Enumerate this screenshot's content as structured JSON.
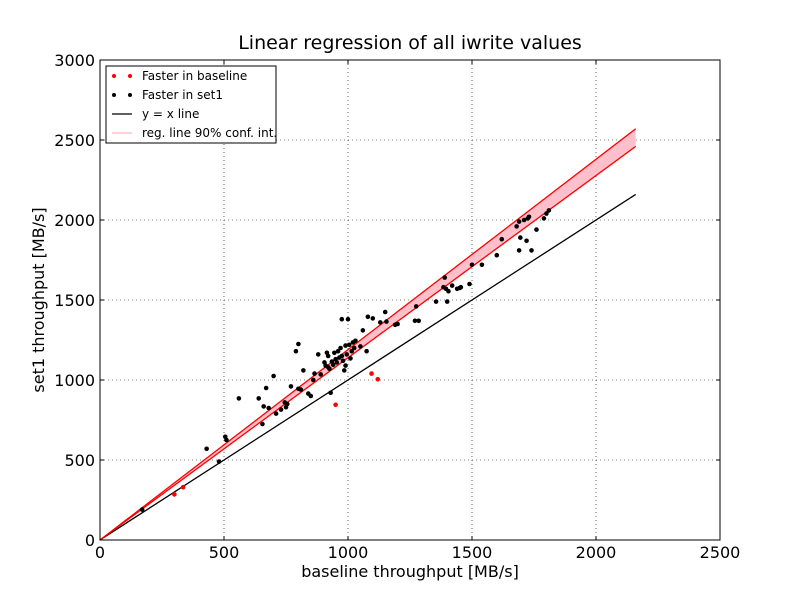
{
  "chart_data": {
    "type": "scatter",
    "title": "Linear regression of all iwrite values",
    "xlabel": "baseline throughput [MB/s]",
    "ylabel": "set1 throughput [MB/s]",
    "xlim": [
      0,
      2500
    ],
    "ylim": [
      0,
      3000
    ],
    "xticks": [
      0,
      500,
      1000,
      1500,
      2000,
      2500
    ],
    "yticks": [
      0,
      500,
      1000,
      1500,
      2000,
      2500,
      3000
    ],
    "grid": true,
    "legend_position": "top-left",
    "colors": {
      "baseline_points": "#ff0000",
      "set1_points": "#000000",
      "identity_line": "#000000",
      "regression": "#ff0000",
      "confidence_fill": "#ffc0cb"
    },
    "series": [
      {
        "name": "Faster in baseline",
        "kind": "points",
        "points": [
          [
            300,
            285
          ],
          [
            335,
            330
          ],
          [
            950,
            845
          ],
          [
            1095,
            1040
          ],
          [
            1120,
            1005
          ]
        ]
      },
      {
        "name": "Faster in set1",
        "kind": "points",
        "points": [
          [
            170,
            190
          ],
          [
            430,
            570
          ],
          [
            480,
            490
          ],
          [
            505,
            645
          ],
          [
            510,
            625
          ],
          [
            560,
            885
          ],
          [
            640,
            885
          ],
          [
            655,
            725
          ],
          [
            660,
            835
          ],
          [
            670,
            950
          ],
          [
            680,
            825
          ],
          [
            700,
            1025
          ],
          [
            710,
            790
          ],
          [
            730,
            815
          ],
          [
            745,
            860
          ],
          [
            750,
            830
          ],
          [
            755,
            850
          ],
          [
            770,
            960
          ],
          [
            790,
            1180
          ],
          [
            800,
            1225
          ],
          [
            800,
            945
          ],
          [
            810,
            940
          ],
          [
            820,
            1060
          ],
          [
            840,
            915
          ],
          [
            850,
            900
          ],
          [
            860,
            1000
          ],
          [
            865,
            1040
          ],
          [
            880,
            1160
          ],
          [
            890,
            1035
          ],
          [
            905,
            1110
          ],
          [
            910,
            1090
          ],
          [
            915,
            1170
          ],
          [
            920,
            1150
          ],
          [
            920,
            1080
          ],
          [
            925,
            1070
          ],
          [
            930,
            920
          ],
          [
            935,
            1115
          ],
          [
            940,
            1095
          ],
          [
            945,
            1170
          ],
          [
            950,
            1130
          ],
          [
            955,
            1110
          ],
          [
            960,
            1180
          ],
          [
            965,
            1140
          ],
          [
            970,
            1200
          ],
          [
            975,
            1150
          ],
          [
            975,
            1380
          ],
          [
            980,
            1120
          ],
          [
            985,
            1060
          ],
          [
            990,
            1090
          ],
          [
            990,
            1215
          ],
          [
            995,
            1160
          ],
          [
            1000,
            1380
          ],
          [
            1005,
            1220
          ],
          [
            1010,
            1135
          ],
          [
            1015,
            1180
          ],
          [
            1020,
            1235
          ],
          [
            1025,
            1200
          ],
          [
            1030,
            1245
          ],
          [
            1050,
            1210
          ],
          [
            1060,
            1310
          ],
          [
            1075,
            1180
          ],
          [
            1080,
            1395
          ],
          [
            1100,
            1385
          ],
          [
            1130,
            1360
          ],
          [
            1150,
            1425
          ],
          [
            1155,
            1365
          ],
          [
            1190,
            1345
          ],
          [
            1200,
            1350
          ],
          [
            1270,
            1370
          ],
          [
            1275,
            1460
          ],
          [
            1285,
            1370
          ],
          [
            1355,
            1490
          ],
          [
            1385,
            1580
          ],
          [
            1390,
            1640
          ],
          [
            1395,
            1570
          ],
          [
            1400,
            1490
          ],
          [
            1405,
            1555
          ],
          [
            1420,
            1590
          ],
          [
            1440,
            1570
          ],
          [
            1450,
            1575
          ],
          [
            1455,
            1580
          ],
          [
            1490,
            1600
          ],
          [
            1500,
            1720
          ],
          [
            1540,
            1720
          ],
          [
            1600,
            1780
          ],
          [
            1620,
            1880
          ],
          [
            1680,
            1960
          ],
          [
            1690,
            1810
          ],
          [
            1690,
            1990
          ],
          [
            1695,
            1890
          ],
          [
            1710,
            2000
          ],
          [
            1720,
            1870
          ],
          [
            1725,
            2010
          ],
          [
            1730,
            2020
          ],
          [
            1740,
            1810
          ],
          [
            1760,
            1940
          ],
          [
            1790,
            2010
          ],
          [
            1800,
            2040
          ],
          [
            1810,
            2060
          ]
        ]
      },
      {
        "name": "y = x line",
        "kind": "line",
        "points": [
          [
            0,
            0
          ],
          [
            2160,
            2160
          ]
        ]
      },
      {
        "name": "reg. line 90% conf. int.",
        "kind": "band",
        "lower": [
          [
            0,
            0
          ],
          [
            2160,
            2460
          ]
        ],
        "upper": [
          [
            0,
            0
          ],
          [
            2160,
            2570
          ]
        ]
      }
    ]
  }
}
